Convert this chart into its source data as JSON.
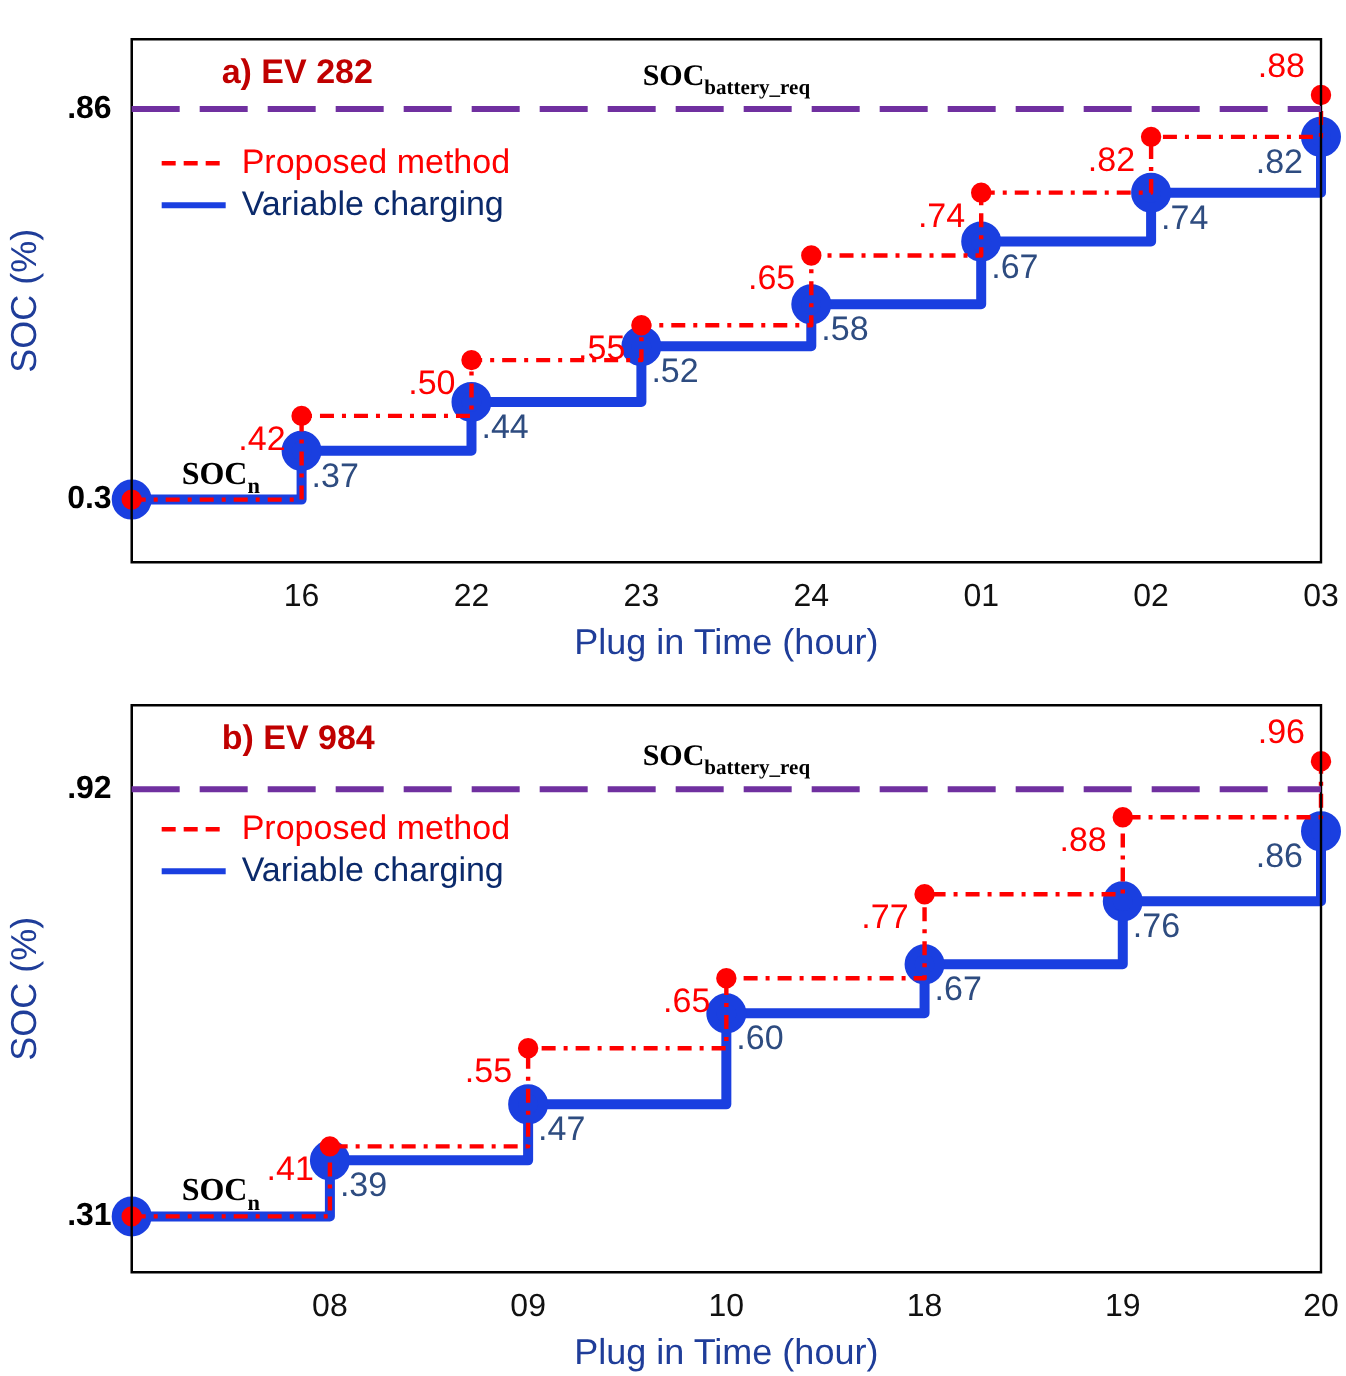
{
  "chart_data": [
    {
      "type": "step",
      "title": "a) EV 282",
      "xlabel": "Plug in Time (hour)",
      "ylabel": "SOC (%)",
      "categories": [
        null,
        "16",
        "22",
        "23",
        "24",
        "01",
        "02",
        "03"
      ],
      "series": [
        {
          "name": "Proposed method",
          "color": "#ff0000",
          "line_style": "dashed",
          "marker": "circle",
          "values": [
            0.3,
            0.42,
            0.5,
            0.55,
            0.65,
            0.74,
            0.82,
            0.88
          ],
          "value_labels": [
            null,
            ".42",
            ".50",
            ".55",
            ".65",
            ".74",
            ".82",
            ".88"
          ]
        },
        {
          "name": "Variable charging",
          "color": "#1a3fe0",
          "line_style": "solid",
          "marker": "circle",
          "values": [
            0.3,
            0.37,
            0.44,
            0.52,
            0.58,
            0.67,
            0.74,
            0.82
          ],
          "value_labels": [
            null,
            ".37",
            ".44",
            ".52",
            ".58",
            ".67",
            ".74",
            ".82"
          ]
        }
      ],
      "ylim": [
        0.21,
        0.96
      ],
      "yticks": [
        {
          "value": 0.3,
          "label": "0.3"
        },
        {
          "value": 0.86,
          "label": ".86"
        }
      ],
      "ref_lines": [
        {
          "axis": "y",
          "value": 0.86,
          "label": "SOC$_{battery_req}$",
          "color": "#7030a0",
          "line_style": "dashed"
        }
      ],
      "annotations": [
        "SOC$_{n}$"
      ],
      "legend": "top left"
    },
    {
      "type": "step",
      "title": "b) EV 984",
      "xlabel": "Plug in Time (hour)",
      "ylabel": "SOC (%)",
      "categories": [
        null,
        "08",
        "09",
        "10",
        "18",
        "19",
        "20"
      ],
      "series": [
        {
          "name": "Proposed method",
          "color": "#ff0000",
          "line_style": "dashed",
          "marker": "circle",
          "values": [
            0.31,
            0.41,
            0.55,
            0.65,
            0.77,
            0.88,
            0.96
          ],
          "value_labels": [
            null,
            ".41",
            ".55",
            ".65",
            ".77",
            ".88",
            ".96"
          ]
        },
        {
          "name": "Variable charging",
          "color": "#1a3fe0",
          "line_style": "solid",
          "marker": "circle",
          "values": [
            0.31,
            0.39,
            0.47,
            0.6,
            0.67,
            0.76,
            0.86
          ],
          "value_labels": [
            null,
            ".39",
            ".47",
            ".60",
            ".67",
            ".76",
            ".86"
          ]
        }
      ],
      "ylim": [
        0.23,
        1.04
      ],
      "yticks": [
        {
          "value": 0.31,
          "label": ".31"
        },
        {
          "value": 0.92,
          "label": ".92"
        }
      ],
      "ref_lines": [
        {
          "axis": "y",
          "value": 0.92,
          "label": "SOC$_{battery_req}$",
          "color": "#7030a0",
          "line_style": "dashed"
        }
      ],
      "annotations": [
        "SOC$_{n}$"
      ],
      "legend": "top left"
    }
  ]
}
